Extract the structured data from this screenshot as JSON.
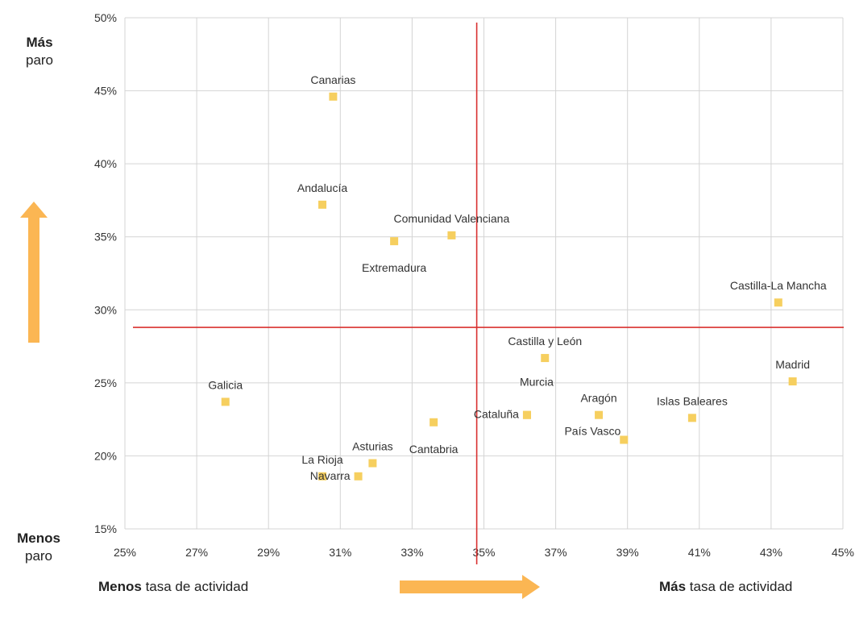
{
  "side_labels": {
    "top": {
      "bold": "Más",
      "rest": "paro"
    },
    "bottom": {
      "bold": "Menos",
      "rest": "paro"
    }
  },
  "bottom_labels": {
    "left": {
      "bold": "Menos",
      "rest": " tasa de actividad"
    },
    "right": {
      "bold": "Más",
      "rest": " tasa de actividad"
    }
  },
  "colors": {
    "marker": "#F6CF5F",
    "arrow": "#FBB653",
    "divider": "#D9302F",
    "grid": "#D4D4D4"
  },
  "chart_data": {
    "type": "scatter",
    "xlim": [
      0.25,
      0.45
    ],
    "ylim": [
      0.15,
      0.5
    ],
    "x_ticks": [
      "25%",
      "27%",
      "29%",
      "31%",
      "33%",
      "35%",
      "37%",
      "39%",
      "41%",
      "43%",
      "45%"
    ],
    "x_tick_values": [
      0.25,
      0.27,
      0.29,
      0.31,
      0.33,
      0.35,
      0.37,
      0.39,
      0.41,
      0.43,
      0.45
    ],
    "y_ticks": [
      "15%",
      "20%",
      "25%",
      "30%",
      "35%",
      "40%",
      "45%",
      "50%"
    ],
    "y_tick_values": [
      0.15,
      0.2,
      0.25,
      0.3,
      0.35,
      0.4,
      0.45,
      0.5
    ],
    "grid": true,
    "reference_lines": {
      "x": 0.348,
      "y": 0.288
    },
    "points": [
      {
        "label": "Canarias",
        "x": 0.308,
        "y": 0.446,
        "label_pos": "above"
      },
      {
        "label": "Andalucía",
        "x": 0.305,
        "y": 0.372,
        "label_pos": "above"
      },
      {
        "label": "Comunidad Valenciana",
        "x": 0.341,
        "y": 0.351,
        "label_pos": "above"
      },
      {
        "label": "Extremadura",
        "x": 0.325,
        "y": 0.347,
        "label_pos": "below"
      },
      {
        "label": "Castilla-La Mancha",
        "x": 0.432,
        "y": 0.305,
        "label_pos": "above"
      },
      {
        "label": "Castilla y León",
        "x": 0.367,
        "y": 0.267,
        "label_pos": "above"
      },
      {
        "label": "Madrid",
        "x": 0.436,
        "y": 0.251,
        "label_pos": "above"
      },
      {
        "label": "Galicia",
        "x": 0.278,
        "y": 0.237,
        "label_pos": "above"
      },
      {
        "label": "Murcia",
        "x": 0.362,
        "y": 0.228,
        "label_pos": "above-right"
      },
      {
        "label": "Aragón",
        "x": 0.382,
        "y": 0.228,
        "label_pos": "above"
      },
      {
        "label": "Cataluña",
        "x": 0.362,
        "y": 0.228,
        "label_pos": "left"
      },
      {
        "label": "Islas Baleares",
        "x": 0.408,
        "y": 0.226,
        "label_pos": "above"
      },
      {
        "label": "Cantabria",
        "x": 0.336,
        "y": 0.223,
        "label_pos": "below"
      },
      {
        "label": "País Vasco",
        "x": 0.389,
        "y": 0.211,
        "label_pos": "above-left"
      },
      {
        "label": "Asturias",
        "x": 0.319,
        "y": 0.195,
        "label_pos": "above"
      },
      {
        "label": "La Rioja",
        "x": 0.305,
        "y": 0.186,
        "label_pos": "above"
      },
      {
        "label": "Navarra",
        "x": 0.315,
        "y": 0.186,
        "label_pos": "left"
      }
    ]
  }
}
